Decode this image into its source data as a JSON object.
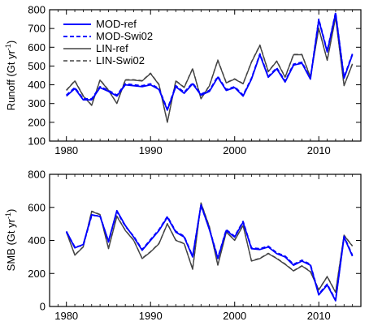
{
  "chart_data": [
    {
      "type": "line",
      "ylabel_base": "Runoff (Gt yr",
      "ylabel_sup": "-1",
      "ylabel_end": ")",
      "xlim": [
        1978,
        2015
      ],
      "ylim": [
        100,
        800
      ],
      "xticks": [
        1980,
        1990,
        2000,
        2010
      ],
      "yticks": [
        100,
        200,
        300,
        400,
        500,
        600,
        700,
        800
      ],
      "grid": false,
      "legend": "top-left",
      "x": [
        1980,
        1981,
        1982,
        1983,
        1984,
        1985,
        1986,
        1987,
        1988,
        1989,
        1990,
        1991,
        1992,
        1993,
        1994,
        1995,
        1996,
        1997,
        1998,
        1999,
        2000,
        2001,
        2002,
        2003,
        2004,
        2005,
        2006,
        2007,
        2008,
        2009,
        2010,
        2011,
        2012,
        2013,
        2014
      ],
      "series": [
        {
          "name": "MOD-ref",
          "color": "#0000ff",
          "dash": "solid",
          "values": [
            340,
            380,
            320,
            320,
            385,
            365,
            340,
            400,
            395,
            390,
            400,
            375,
            265,
            390,
            355,
            405,
            345,
            365,
            440,
            370,
            385,
            340,
            430,
            560,
            440,
            485,
            415,
            505,
            515,
            430,
            745,
            575,
            780,
            435,
            560
          ]
        },
        {
          "name": "MOD-Swi02",
          "color": "#0000ff",
          "dash": "dashed",
          "values": [
            345,
            385,
            325,
            325,
            390,
            370,
            345,
            405,
            400,
            395,
            405,
            380,
            270,
            395,
            360,
            410,
            350,
            370,
            445,
            375,
            390,
            345,
            435,
            565,
            445,
            490,
            420,
            510,
            520,
            435,
            750,
            580,
            785,
            440,
            565
          ]
        },
        {
          "name": "LIN-ref",
          "color": "#444444",
          "dash": "solid",
          "values": [
            370,
            420,
            340,
            290,
            425,
            370,
            300,
            425,
            425,
            420,
            460,
            400,
            200,
            420,
            385,
            485,
            325,
            395,
            530,
            410,
            430,
            405,
            520,
            610,
            470,
            525,
            440,
            560,
            560,
            440,
            700,
            530,
            760,
            395,
            510
          ]
        },
        {
          "name": "LIN-Swi02",
          "color": "#444444",
          "dash": "dashed",
          "values": [
            372,
            422,
            342,
            292,
            427,
            372,
            302,
            427,
            427,
            422,
            462,
            402,
            202,
            422,
            387,
            487,
            327,
            397,
            532,
            412,
            432,
            407,
            522,
            612,
            472,
            527,
            442,
            562,
            562,
            442,
            702,
            532,
            762,
            397,
            512
          ]
        }
      ]
    },
    {
      "type": "line",
      "ylabel": "SMB (Gt yr",
      "ylabel_sup": "-1",
      "ylabel_end": ")",
      "xlim": [
        1978,
        2015
      ],
      "ylim": [
        0,
        800
      ],
      "xticks": [
        1980,
        1990,
        2000,
        2010
      ],
      "yticks": [
        0,
        200,
        400,
        600,
        800
      ],
      "grid": false,
      "x": [
        1980,
        1981,
        1982,
        1983,
        1984,
        1985,
        1986,
        1987,
        1988,
        1989,
        1990,
        1991,
        1992,
        1993,
        1994,
        1995,
        1996,
        1997,
        1998,
        1999,
        2000,
        2001,
        2002,
        2003,
        2004,
        2005,
        2006,
        2007,
        2008,
        2009,
        2010,
        2011,
        2012,
        2013,
        2014
      ],
      "series": [
        {
          "color": "#0000ff",
          "dash": "solid",
          "values": [
            455,
            355,
            375,
            555,
            545,
            395,
            580,
            490,
            420,
            340,
            400,
            460,
            540,
            450,
            420,
            300,
            615,
            465,
            290,
            460,
            420,
            510,
            350,
            345,
            360,
            320,
            300,
            250,
            275,
            250,
            70,
            130,
            35,
            420,
            305
          ]
        },
        {
          "color": "#0000ff",
          "dash": "dashed",
          "values": [
            450,
            360,
            370,
            550,
            550,
            390,
            575,
            485,
            425,
            345,
            405,
            465,
            545,
            455,
            425,
            305,
            610,
            470,
            295,
            465,
            425,
            515,
            355,
            350,
            365,
            325,
            305,
            255,
            280,
            255,
            75,
            135,
            40,
            425,
            310
          ]
        },
        {
          "color": "#444444",
          "dash": "solid",
          "values": [
            450,
            310,
            360,
            575,
            555,
            350,
            545,
            460,
            400,
            290,
            330,
            380,
            500,
            400,
            380,
            225,
            625,
            480,
            250,
            450,
            400,
            490,
            275,
            290,
            320,
            290,
            255,
            215,
            245,
            210,
            100,
            180,
            85,
            430,
            365
          ]
        },
        {
          "color": "#444444",
          "dash": "dashed",
          "values": [
            452,
            312,
            362,
            577,
            557,
            352,
            547,
            462,
            402,
            292,
            332,
            382,
            502,
            402,
            382,
            227,
            627,
            482,
            252,
            452,
            402,
            492,
            277,
            292,
            322,
            292,
            257,
            217,
            247,
            212,
            102,
            182,
            87,
            432,
            367
          ]
        }
      ]
    }
  ]
}
